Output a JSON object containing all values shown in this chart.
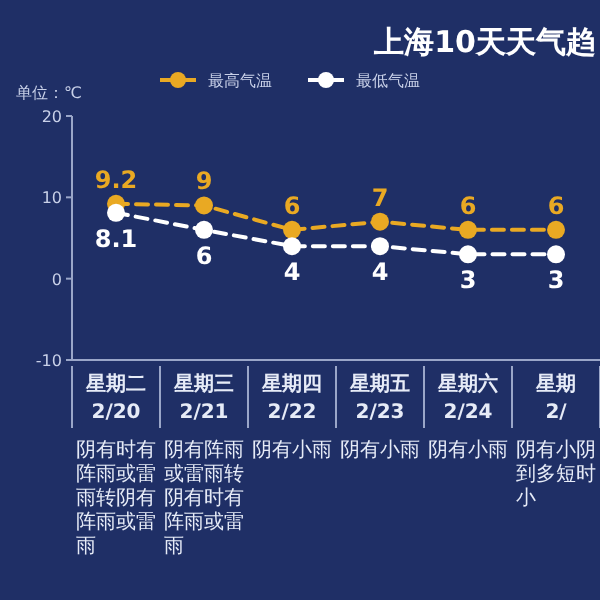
{
  "chart_data": {
    "type": "line",
    "title": "上海10天天气趋",
    "ylabel": "单位：℃",
    "categories": [
      "星期二 2/20",
      "星期三 2/21",
      "星期四 2/22",
      "星期五 2/23",
      "星期六 2/24",
      "星期 2/"
    ],
    "series": [
      {
        "name": "最高气温",
        "color": "#e9a923",
        "values": [
          9.2,
          9,
          6,
          7,
          6,
          6
        ]
      },
      {
        "name": "最低气温",
        "color": "#ffffff",
        "values": [
          8.1,
          6,
          4,
          4,
          3,
          3
        ]
      }
    ],
    "ylim": [
      -10,
      20
    ],
    "yticks": [
      -10,
      0,
      10,
      20
    ],
    "data_labels": true,
    "legend": "top",
    "marker": "circle",
    "line_style": "dashed",
    "grid": false,
    "annotations": [
      "阴有时有阵雨或雷雨转阴有阵雨或雷雨",
      "阴有阵雨或雷雨转阴有时有阵雨或雷雨",
      "阴有小雨",
      "阴有小雨",
      "阴有小雨",
      "阴有小阴到多短时小"
    ]
  }
}
